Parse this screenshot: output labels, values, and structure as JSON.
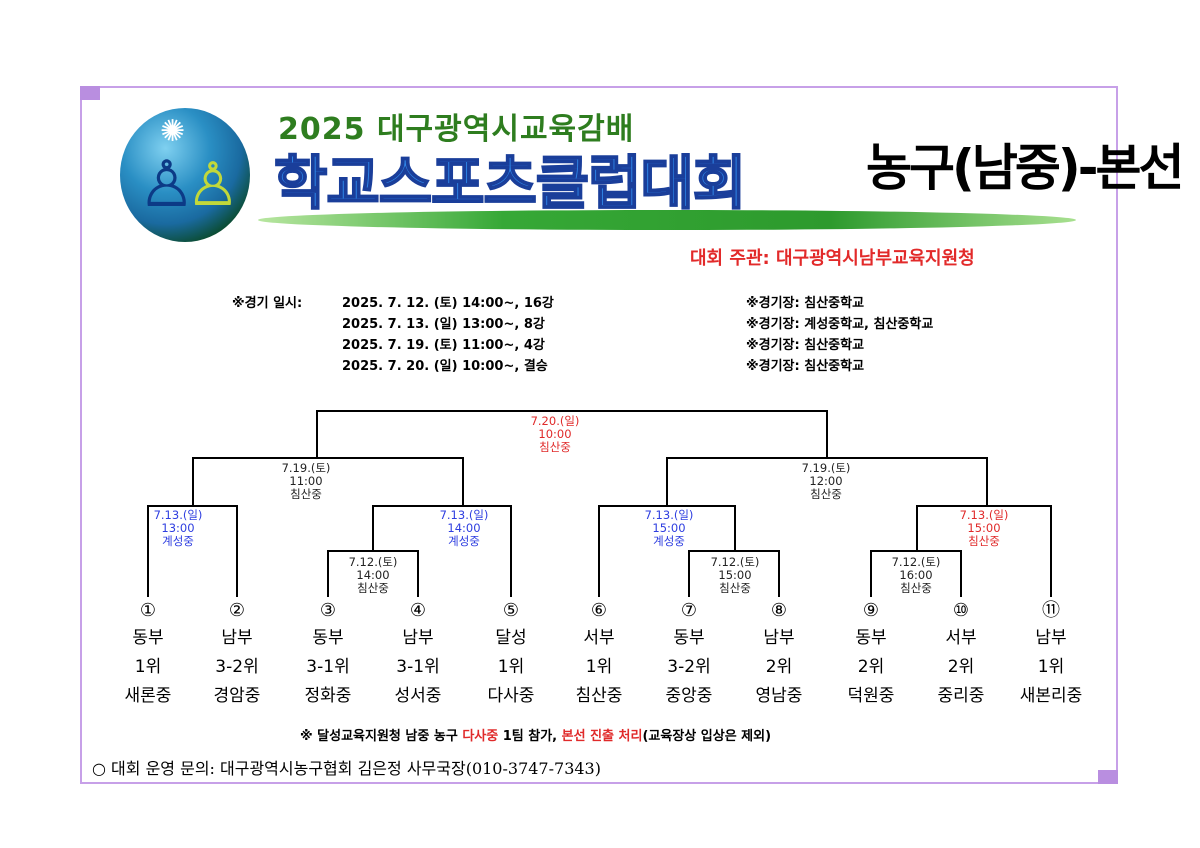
{
  "header": {
    "line1": "2025  대구광역시교육감배",
    "line2": "학교스포츠클럽대회",
    "line3": "농구(남중)-본선",
    "host": "대회  주관:  대구광역시남부교육지원청"
  },
  "schedule": {
    "label": "※경기 일시:",
    "rows": [
      {
        "when": "2025. 7. 12. (토) 14:00~, 16강",
        "venue": "※경기장: 침산중학교"
      },
      {
        "when": "2025. 7. 13. (일) 13:00~, 8강",
        "venue": "※경기장: 계성중학교, 침산중학교"
      },
      {
        "when": "2025. 7. 19. (토) 11:00~, 4강",
        "venue": "※경기장: 침산중학교"
      },
      {
        "when": "2025. 7. 20. (일) 10:00~, 결승",
        "venue": "※경기장: 침산중학교"
      }
    ]
  },
  "bracket": {
    "matches": [
      {
        "id": "final",
        "date": "7.20.(일)",
        "time": "10:00",
        "place": "침산중",
        "color": "red"
      },
      {
        "id": "sf-left",
        "date": "7.19.(토)",
        "time": "11:00",
        "place": "침산중",
        "color": "black"
      },
      {
        "id": "sf-right",
        "date": "7.19.(토)",
        "time": "12:00",
        "place": "침산중",
        "color": "black"
      },
      {
        "id": "qf-1",
        "date": "7.13.(일)",
        "time": "13:00",
        "place": "계성중",
        "color": "blue"
      },
      {
        "id": "qf-2",
        "date": "7.13.(일)",
        "time": "14:00",
        "place": "계성중",
        "color": "blue"
      },
      {
        "id": "qf-3",
        "date": "7.13.(일)",
        "time": "15:00",
        "place": "계성중",
        "color": "blue"
      },
      {
        "id": "qf-4",
        "date": "7.13.(일)",
        "time": "15:00",
        "place": "침산중",
        "color": "red"
      },
      {
        "id": "r16-1",
        "date": "7.12.(토)",
        "time": "14:00",
        "place": "침산중",
        "color": "black"
      },
      {
        "id": "r16-2",
        "date": "7.12.(토)",
        "time": "15:00",
        "place": "침산중",
        "color": "black"
      },
      {
        "id": "r16-3",
        "date": "7.12.(토)",
        "time": "16:00",
        "place": "침산중",
        "color": "black"
      }
    ],
    "teams": [
      {
        "no": "①",
        "region": "동부",
        "rank": "1위",
        "school": "새론중"
      },
      {
        "no": "②",
        "region": "남부",
        "rank": "3-2위",
        "school": "경암중"
      },
      {
        "no": "③",
        "region": "동부",
        "rank": "3-1위",
        "school": "정화중"
      },
      {
        "no": "④",
        "region": "남부",
        "rank": "3-1위",
        "school": "성서중"
      },
      {
        "no": "⑤",
        "region": "달성",
        "rank": "1위",
        "school": "다사중"
      },
      {
        "no": "⑥",
        "region": "서부",
        "rank": "1위",
        "school": "침산중"
      },
      {
        "no": "⑦",
        "region": "동부",
        "rank": "3-2위",
        "school": "중앙중"
      },
      {
        "no": "⑧",
        "region": "남부",
        "rank": "2위",
        "school": "영남중"
      },
      {
        "no": "⑨",
        "region": "동부",
        "rank": "2위",
        "school": "덕원중"
      },
      {
        "no": "⑩",
        "region": "서부",
        "rank": "2위",
        "school": "중리중"
      },
      {
        "no": "⑪",
        "region": "남부",
        "rank": "1위",
        "school": "새본리중"
      }
    ]
  },
  "note": {
    "part1": "※  달성교육지원청  남중  농구 ",
    "part2": "다사중",
    "part3": " 1팀  참가, ",
    "part4": "본선  진출  처리",
    "part5": "(교육장상  입상은  제외)"
  },
  "contact": "○  대회  운영  문의:  대구광역시농구협회  김은정  사무국장(010-3747-7343)"
}
